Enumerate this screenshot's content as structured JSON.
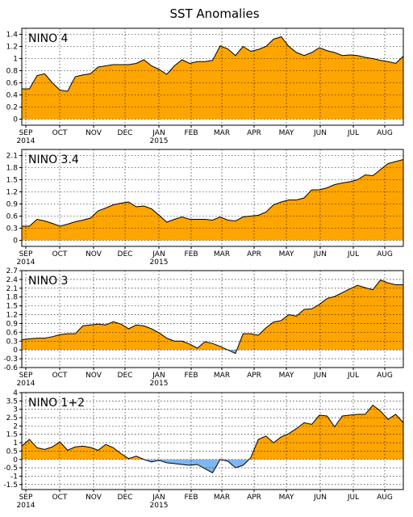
{
  "figure": {
    "title": "SST Anomalies"
  },
  "colors": {
    "positive_fill": "#FFA500",
    "negative_fill": "#7FB6EE",
    "line": "#000000",
    "grid": "#000000",
    "background": "#FFFFFF"
  },
  "months": [
    "SEP",
    "OCT",
    "NOV",
    "DEC",
    "JAN",
    "FEB",
    "MAR",
    "APR",
    "MAY",
    "JUN",
    "JUL",
    "AUG"
  ],
  "year_labels": {
    "SEP": "2014",
    "JAN": "2015"
  },
  "chart_data": [
    {
      "type": "area",
      "title": "NINO 4",
      "ylim": [
        -0.1,
        1.5
      ],
      "yticks": [
        0,
        0.2,
        0.4,
        0.6,
        0.8,
        1,
        1.2,
        1.4
      ],
      "ytick_labels": [
        "0",
        "0.2",
        "0.4",
        "0.6",
        "0.8",
        "1",
        "1.2",
        "1.4"
      ],
      "grid": true,
      "series": [
        {
          "values": [
            0.5,
            0.5,
            0.72,
            0.75,
            0.6,
            0.48,
            0.46,
            0.7,
            0.73,
            0.75,
            0.86,
            0.88,
            0.9,
            0.9,
            0.9,
            0.92,
            0.98,
            0.88,
            0.82,
            0.74,
            0.88,
            0.98,
            0.92,
            0.95,
            0.95,
            0.97,
            1.21,
            1.16,
            1.05,
            1.2,
            1.12,
            1.15,
            1.2,
            1.32,
            1.36,
            1.2,
            1.1,
            1.05,
            1.1,
            1.18,
            1.13,
            1.1,
            1.05,
            1.06,
            1.05,
            1.02,
            1.0,
            0.97,
            0.95,
            0.92,
            1.04
          ]
        }
      ]
    },
    {
      "type": "area",
      "title": "NINO 3.4",
      "ylim": [
        -0.15,
        2.25
      ],
      "yticks": [
        0,
        0.3,
        0.6,
        0.9,
        1.2,
        1.5,
        1.8,
        2.1
      ],
      "ytick_labels": [
        "0",
        "0.3",
        "0.6",
        "0.9",
        "1.2",
        "1.5",
        "1.8",
        "2.1"
      ],
      "grid": true,
      "series": [
        {
          "values": [
            0.35,
            0.35,
            0.52,
            0.48,
            0.42,
            0.35,
            0.4,
            0.46,
            0.5,
            0.55,
            0.73,
            0.8,
            0.88,
            0.92,
            0.95,
            0.83,
            0.85,
            0.78,
            0.62,
            0.45,
            0.52,
            0.58,
            0.52,
            0.52,
            0.52,
            0.5,
            0.58,
            0.5,
            0.48,
            0.58,
            0.6,
            0.62,
            0.7,
            0.88,
            0.95,
            1.0,
            1.0,
            1.05,
            1.25,
            1.25,
            1.3,
            1.38,
            1.42,
            1.45,
            1.5,
            1.62,
            1.6,
            1.75,
            1.9,
            1.95,
            2.0
          ]
        }
      ]
    },
    {
      "type": "area",
      "title": "NINO 3",
      "ylim": [
        -0.6,
        2.7
      ],
      "yticks": [
        -0.6,
        -0.3,
        0,
        0.3,
        0.6,
        0.9,
        1.2,
        1.5,
        1.8,
        2.1,
        2.4,
        2.7
      ],
      "ytick_labels": [
        "-0.6",
        "-0.3",
        "0",
        "0.3",
        "0.6",
        "0.9",
        "1.2",
        "1.5",
        "1.8",
        "2.1",
        "2.4",
        "2.7"
      ],
      "grid": true,
      "series": [
        {
          "values": [
            0.35,
            0.38,
            0.4,
            0.4,
            0.45,
            0.52,
            0.55,
            0.55,
            0.82,
            0.85,
            0.88,
            0.85,
            0.96,
            0.88,
            0.72,
            0.85,
            0.82,
            0.72,
            0.58,
            0.4,
            0.3,
            0.3,
            0.2,
            0.06,
            0.28,
            0.22,
            0.12,
            0.0,
            -0.12,
            0.55,
            0.55,
            0.5,
            0.75,
            0.95,
            1.0,
            1.2,
            1.15,
            1.38,
            1.4,
            1.55,
            1.75,
            1.82,
            1.95,
            2.08,
            2.2,
            2.12,
            2.05,
            2.38,
            2.28,
            2.22,
            2.22
          ]
        }
      ]
    },
    {
      "type": "area",
      "title": "NINO 1+2",
      "ylim": [
        -1.8,
        4.0
      ],
      "yticks": [
        -1.5,
        -1,
        -0.5,
        0,
        0.5,
        1,
        1.5,
        2,
        2.5,
        3,
        3.5,
        4
      ],
      "ytick_labels": [
        "-1.5",
        "-1",
        "-0.5",
        "0",
        "0.5",
        "1",
        "1.5",
        "2",
        "2.5",
        "3",
        "3.5",
        "4"
      ],
      "grid": true,
      "series": [
        {
          "values": [
            0.8,
            1.2,
            0.7,
            0.6,
            0.75,
            1.05,
            0.55,
            0.75,
            0.8,
            0.72,
            0.55,
            0.9,
            0.7,
            0.35,
            0.05,
            0.2,
            0.0,
            -0.15,
            -0.05,
            -0.2,
            -0.25,
            -0.3,
            -0.35,
            -0.3,
            -0.55,
            -0.8,
            0.0,
            -0.1,
            -0.5,
            -0.35,
            0.1,
            1.2,
            1.4,
            1.0,
            1.35,
            1.55,
            1.85,
            2.2,
            2.1,
            2.65,
            2.6,
            1.95,
            2.6,
            2.65,
            2.7,
            2.7,
            3.25,
            2.9,
            2.4,
            2.7,
            2.2
          ]
        }
      ]
    }
  ]
}
